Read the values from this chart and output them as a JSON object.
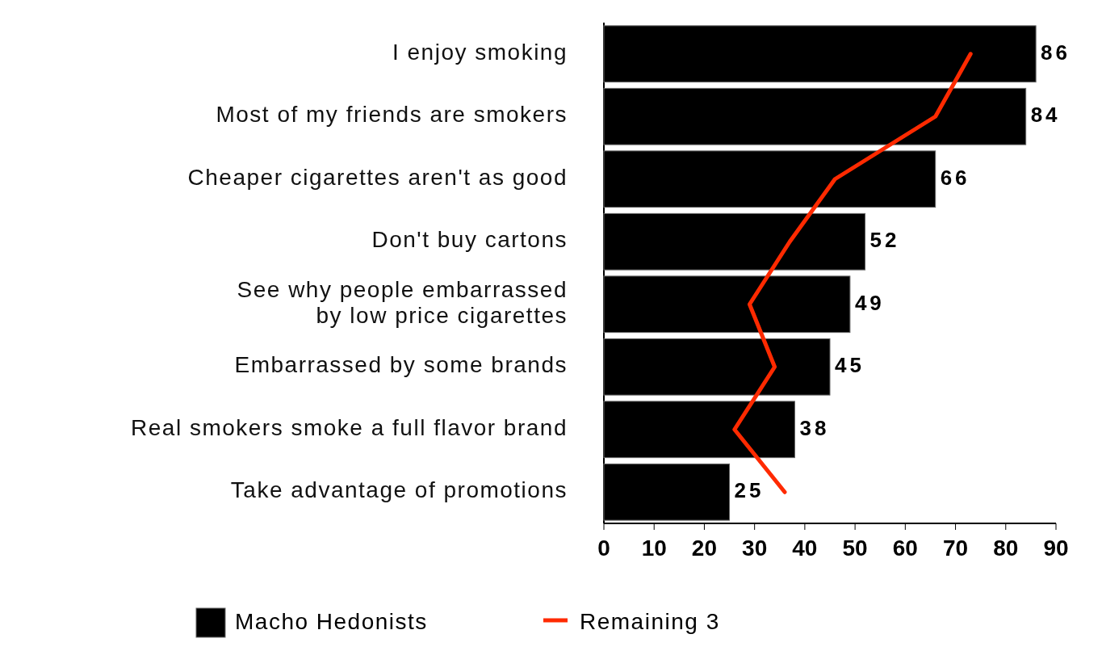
{
  "chart_data": {
    "type": "bar",
    "orientation": "horizontal",
    "categories": [
      "I enjoy smoking",
      "Most of my friends are smokers",
      "Cheaper cigarettes aren't as good",
      "Don't buy cartons",
      "See why people embarrassed\nby low price cigarettes",
      "Embarrassed by some brands",
      "Real smokers smoke a full flavor brand",
      "Take advantage of promotions"
    ],
    "series": [
      {
        "name": "Macho Hedonists",
        "color": "#000000",
        "values": [
          86,
          84,
          66,
          52,
          49,
          45,
          38,
          25
        ],
        "value_labels": [
          "86",
          "84",
          "66",
          "52",
          "49",
          "45",
          "38",
          "25"
        ]
      },
      {
        "name": "Remaining 3",
        "type": "line",
        "color": "#ff2a00",
        "values": [
          73,
          66,
          46,
          37,
          29,
          34,
          26,
          36
        ]
      }
    ],
    "xlim": [
      0,
      90
    ],
    "xticks": [
      0,
      10,
      20,
      30,
      40,
      50,
      60,
      70,
      80,
      90
    ],
    "legend": "bottom",
    "grid": false,
    "marker": "none"
  }
}
